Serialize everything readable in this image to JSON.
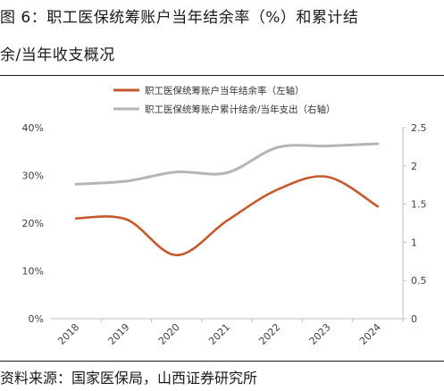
{
  "title": {
    "line1": "图 6：职工医保统筹账户当年结余率（%）和累计结",
    "line2": "余/当年收支概况"
  },
  "source": "资料来源：国家医保局，山西证券研究所",
  "chart_data": {
    "type": "line",
    "title": "",
    "x": [
      "2018",
      "2019",
      "2020",
      "2021",
      "2022",
      "2023",
      "2024"
    ],
    "series": [
      {
        "name": "职工医保统筹账户当年结余率（左轴）",
        "axis": "left",
        "color": "#c5592b",
        "values": [
          21.0,
          20.8,
          13.3,
          20.5,
          27.0,
          29.7,
          23.5
        ]
      },
      {
        "name": "职工医保统筹账户累计结余/当年支出（右轴）",
        "axis": "right",
        "color": "#b5b5b5",
        "values": [
          1.76,
          1.8,
          1.92,
          1.91,
          2.24,
          2.26,
          2.29
        ]
      }
    ],
    "y_left": {
      "ticks": [
        "0%",
        "10%",
        "20%",
        "30%",
        "40%"
      ],
      "ylim": [
        0,
        40
      ]
    },
    "y_right": {
      "ticks": [
        "0",
        "0.5",
        "1",
        "1.5",
        "2",
        "2.5"
      ],
      "ylim": [
        0,
        2.5
      ]
    },
    "legend_position": "top",
    "grid": false
  }
}
